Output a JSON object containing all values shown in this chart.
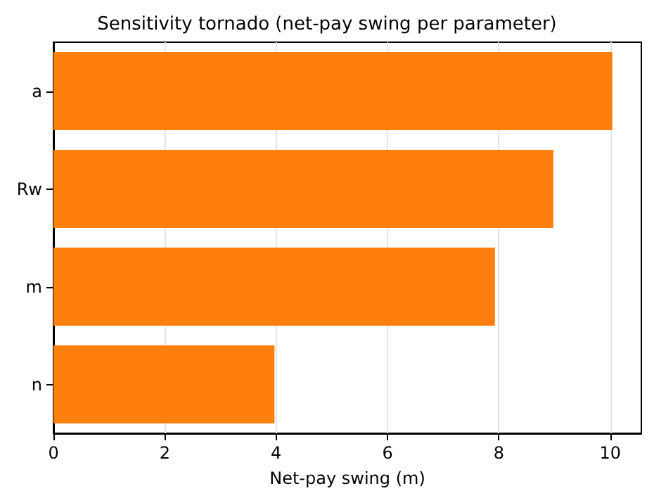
{
  "chart_data": {
    "type": "bar",
    "orientation": "horizontal",
    "title": "Sensitivity tornado (net-pay swing per parameter)",
    "xlabel": "Net-pay swing (m)",
    "categories": [
      "a",
      "Rw",
      "m",
      "n"
    ],
    "values": [
      10.04,
      8.98,
      7.93,
      3.97
    ],
    "color": "#ff7f0e",
    "xlim": [
      0,
      10.56
    ],
    "xticks": [
      0,
      2,
      4,
      6,
      8,
      10
    ],
    "grid": "x"
  }
}
